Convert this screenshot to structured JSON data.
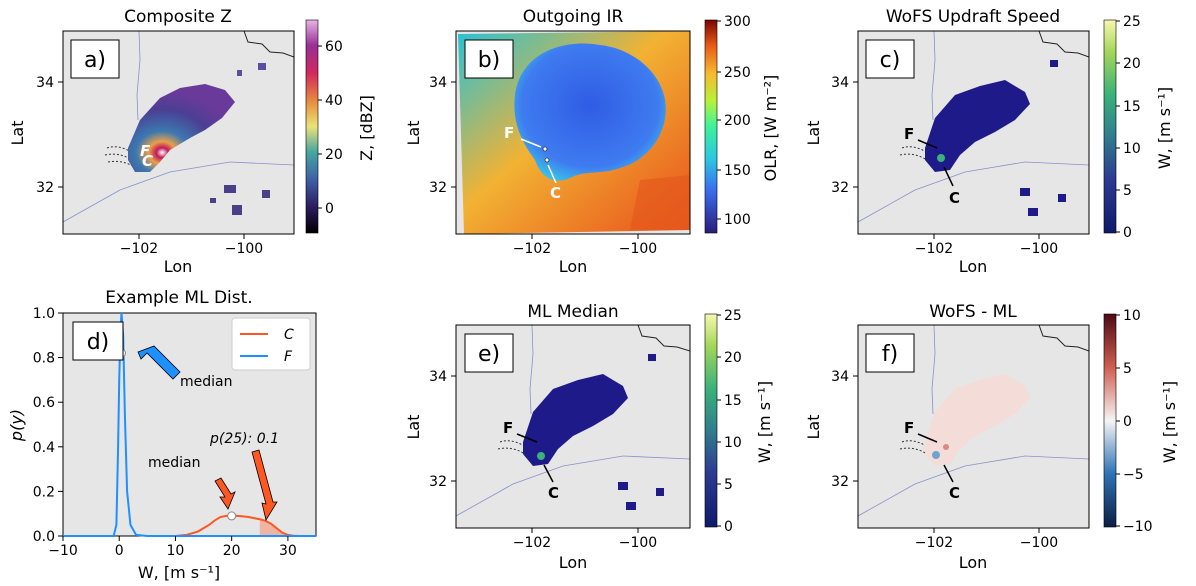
{
  "panels": {
    "a": {
      "label": "a)",
      "title": "Composite Z",
      "xlabel": "Lon",
      "ylabel": "Lat",
      "cbar_label": "Z, [dBZ]",
      "cbar_ticks": [
        "60",
        "40",
        "20",
        "0"
      ],
      "storm_labels": [
        "F",
        "C"
      ]
    },
    "b": {
      "label": "b)",
      "title": "Outgoing IR",
      "xlabel": "Lon",
      "ylabel": "Lat",
      "cbar_label": "OLR, [W m⁻²]",
      "cbar_ticks": [
        "300",
        "250",
        "200",
        "150",
        "100"
      ],
      "storm_labels": [
        "F",
        "C"
      ]
    },
    "c": {
      "label": "c)",
      "title": "WoFS Updraft Speed",
      "xlabel": "Lon",
      "ylabel": "Lat",
      "cbar_label": "W, [m s⁻¹]",
      "cbar_ticks": [
        "25",
        "20",
        "15",
        "10",
        "5",
        "0"
      ],
      "storm_labels": [
        "F",
        "C"
      ]
    },
    "d": {
      "label": "d)",
      "title": "Example ML Dist."
    },
    "e": {
      "label": "e)",
      "title": "ML Median",
      "xlabel": "Lon",
      "ylabel": "Lat",
      "cbar_label": "W, [m s⁻¹]",
      "cbar_ticks": [
        "25",
        "20",
        "15",
        "10",
        "5",
        "0"
      ],
      "storm_labels": [
        "F",
        "C"
      ]
    },
    "f": {
      "label": "f)",
      "title": "WoFS - ML",
      "xlabel": "Lon",
      "ylabel": "Lat",
      "cbar_label": "W, [m s⁻¹]",
      "cbar_ticks": [
        "10",
        "5",
        "0",
        "−5",
        "−10"
      ],
      "storm_labels": [
        "F",
        "C"
      ]
    }
  },
  "map_ticks": {
    "x": [
      "−102",
      "−100"
    ],
    "y": [
      "34",
      "32"
    ]
  },
  "colors": {
    "C": "#ff5722",
    "F": "#1e90ff",
    "map_bg": "#e6e6e6",
    "storm": "#1f1a8a"
  },
  "chart_data": {
    "type": "line",
    "title": "Example ML Dist.",
    "xlabel": "W, [m s⁻¹]",
    "ylabel": "p(y)",
    "xlim": [
      -10,
      35
    ],
    "ylim": [
      0,
      1.0
    ],
    "xticks": [
      -10,
      0,
      10,
      20,
      30
    ],
    "yticks": [
      0.0,
      0.2,
      0.4,
      0.6,
      0.8,
      1.0
    ],
    "legend_position": "top-right",
    "series": [
      {
        "name": "C",
        "color": "#ff5722",
        "x": [
          10,
          12,
          14,
          16,
          17,
          18,
          19,
          20,
          21,
          22,
          23,
          24,
          25,
          26,
          27,
          28,
          29,
          30,
          31,
          32,
          34
        ],
        "y": [
          0,
          0.005,
          0.02,
          0.05,
          0.07,
          0.085,
          0.09,
          0.09,
          0.09,
          0.088,
          0.085,
          0.08,
          0.075,
          0.068,
          0.055,
          0.035,
          0.015,
          0.005,
          0.001,
          0,
          0
        ]
      },
      {
        "name": "F",
        "color": "#1e90ff",
        "x": [
          -10,
          -1,
          -0.5,
          -0.2,
          0,
          0.2,
          0.4,
          0.7,
          1,
          1.4,
          2,
          3,
          5,
          35
        ],
        "y": [
          0,
          0,
          0.05,
          0.4,
          0.7,
          0.9,
          1.0,
          0.9,
          0.55,
          0.2,
          0.05,
          0.005,
          0,
          0
        ]
      }
    ],
    "markers": [
      {
        "series": "F",
        "x": 0.4,
        "y": 0.82,
        "label": "median"
      },
      {
        "series": "C",
        "x": 20,
        "y": 0.09,
        "label": "median"
      }
    ],
    "annotations": [
      {
        "text": "median",
        "target": "F"
      },
      {
        "text": "median",
        "target": "C"
      },
      {
        "text": "p(25): 0.1",
        "target": "C tail"
      }
    ],
    "shaded_tail_from": 25
  }
}
